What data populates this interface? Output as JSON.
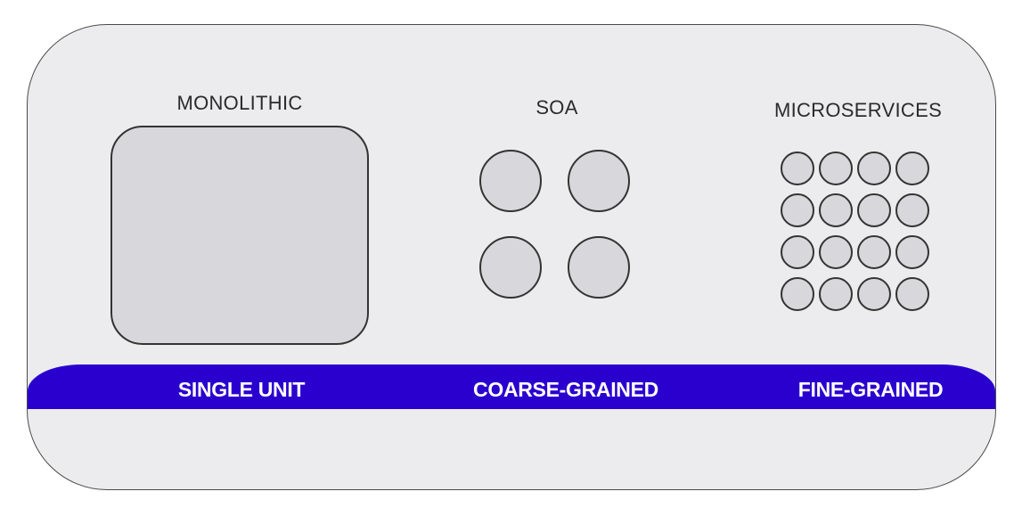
{
  "columns": {
    "monolithic": {
      "title": "MONOLITHIC",
      "band_label": "SINGLE UNIT"
    },
    "soa": {
      "title": "SOA",
      "band_label": "COARSE-GRAINED",
      "service_count": 4
    },
    "microservices": {
      "title": "MICROSERVICES",
      "band_label": "FINE-GRAINED",
      "service_count": 16
    }
  },
  "colors": {
    "panel": "#ececee",
    "band": "#2a00cf",
    "shape_fill": "#d8d8dc",
    "outline": "#333333"
  }
}
